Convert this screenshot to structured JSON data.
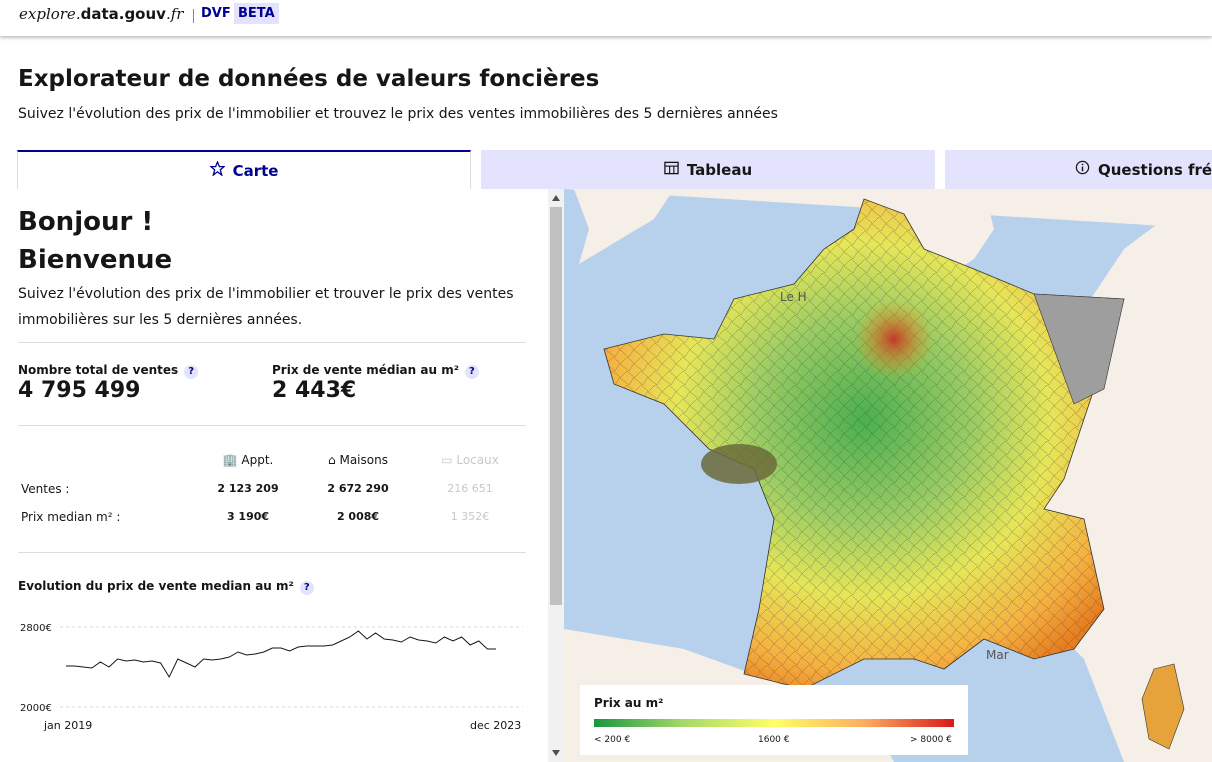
{
  "header": {
    "brand_part1": "explore.",
    "brand_part2": "data.gouv",
    "brand_part3": ".fr",
    "product": "DVF",
    "badge": "BETA"
  },
  "page": {
    "title": "Explorateur de données de valeurs foncières",
    "subtitle": "Suivez l'évolution des prix de l'immobilier et trouvez le prix des ventes immobilières des 5 dernières années"
  },
  "tabs": [
    {
      "label": "Carte",
      "icon": "map-icon",
      "active": true
    },
    {
      "label": "Tableau",
      "icon": "table-icon",
      "active": false
    },
    {
      "label": "Questions fréq",
      "icon": "info-icon",
      "active": false
    }
  ],
  "panel": {
    "greeting_line1": "Bonjour !",
    "greeting_line2": "Bienvenue",
    "intro": "Suivez l'évolution des prix de l'immobilier et trouver le prix des ventes immobilières sur les 5 dernières années.",
    "total_sales_label": "Nombre total de ventes",
    "total_sales_value": "4 795 499",
    "median_price_label": "Prix de vente médian au m²",
    "median_price_value": "2 443€",
    "help": "?",
    "table": {
      "headers": [
        "Appt.",
        "Maisons",
        "Locaux"
      ],
      "rows": [
        {
          "label": "Ventes :",
          "values": [
            "2 123 209",
            "2 672 290",
            "216 651"
          ]
        },
        {
          "label": "Prix median m² :",
          "values": [
            "3 190€",
            "2 008€",
            "1 352€"
          ]
        }
      ]
    },
    "evolution_title": "Evolution du prix de vente median au m²"
  },
  "chart_data": {
    "type": "line",
    "title": "Evolution du prix de vente median au m²",
    "x_start_label": "jan 2019",
    "x_end_label": "dec 2023",
    "y_ticks": [
      "2800€",
      "2000€"
    ],
    "ylim": [
      2000,
      2800
    ],
    "series": [
      {
        "values": [
          2410,
          2410,
          2400,
          2390,
          2450,
          2400,
          2480,
          2460,
          2470,
          2450,
          2460,
          2440,
          2300,
          2480,
          2440,
          2400,
          2480,
          2470,
          2480,
          2500,
          2550,
          2520,
          2530,
          2550,
          2590,
          2590,
          2560,
          2600,
          2610,
          2610,
          2610,
          2620,
          2660,
          2700,
          2760,
          2680,
          2740,
          2680,
          2670,
          2650,
          2700,
          2670,
          2660,
          2640,
          2700,
          2660,
          2700,
          2620,
          2660,
          2580,
          2580
        ]
      }
    ]
  },
  "map": {
    "place_labels": [
      "Le H",
      "Mar"
    ],
    "legend_title": "Prix au m²",
    "legend_ticks": [
      "< 200 €",
      "1600 €",
      "> 8000 €"
    ],
    "colors": {
      "low": "#1a9641",
      "mid": "#ffff66",
      "high": "#d7191c"
    }
  },
  "colors": {
    "accent": "#000091",
    "tab_inactive": "#e3e3fd"
  }
}
